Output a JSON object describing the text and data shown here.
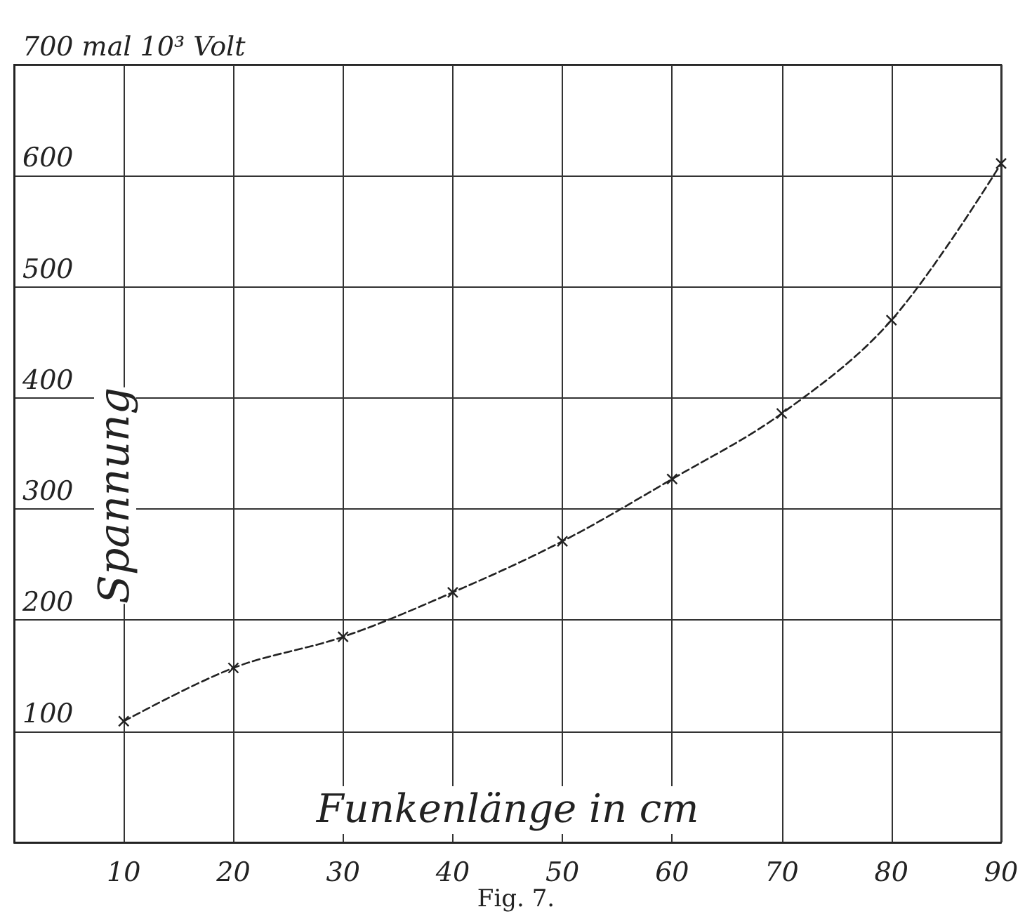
{
  "chart_data": {
    "type": "line",
    "xlabel": "Funkenlänge in cm",
    "ylabel": "Spannung",
    "annotations": [
      "Fig. 7."
    ],
    "x": [
      10,
      20,
      30,
      40,
      50,
      60,
      70,
      80,
      90
    ],
    "series": [
      {
        "color": "#222222",
        "values": [
          109,
          157,
          185,
          225,
          271,
          327,
          386,
          470,
          611
        ]
      }
    ],
    "xlim": [
      0,
      90
    ],
    "xticks": [
      10,
      20,
      30,
      40,
      50,
      60,
      70,
      80,
      90
    ],
    "ylim": [
      0,
      700
    ],
    "yticks": [
      100,
      200,
      300,
      400,
      500,
      600,
      {
        "value": 700,
        "label": "700 mal 10³ Volt"
      }
    ],
    "grid": true,
    "marker": "cross",
    "line_style": "dashed"
  }
}
